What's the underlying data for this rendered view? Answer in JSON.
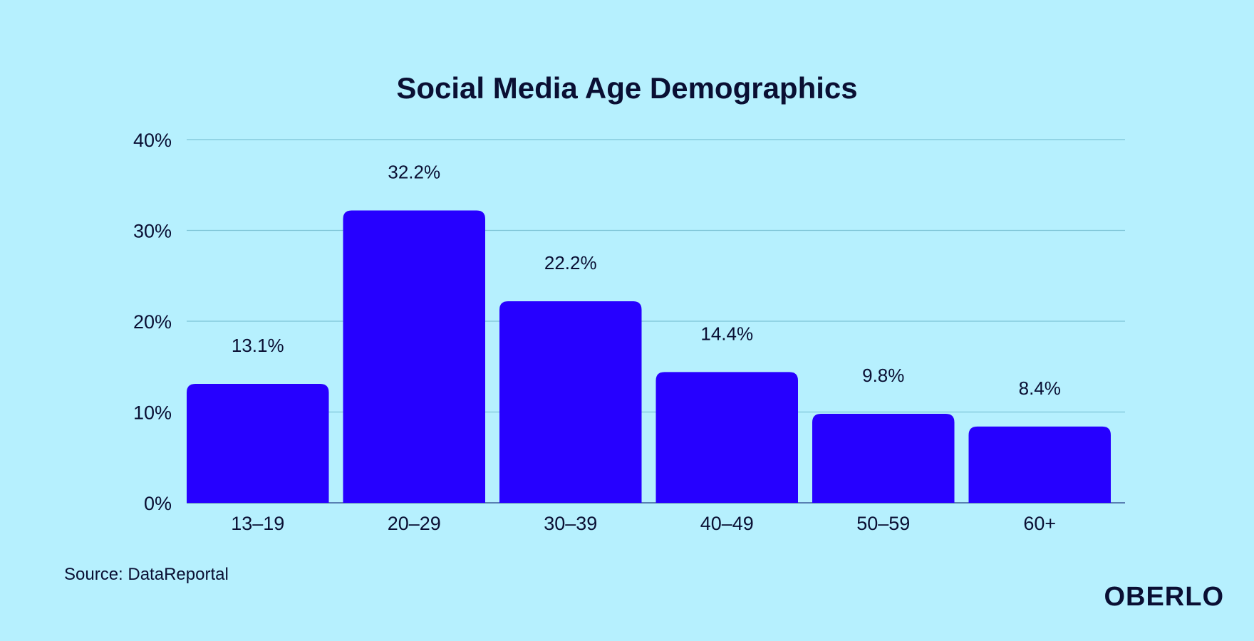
{
  "colors": {
    "background": "#b6f0fe",
    "bar": "#2600ff",
    "text": "#0a0f33",
    "grid": "#7ec4d6"
  },
  "chart_data": {
    "type": "bar",
    "title": "Social Media Age Demographics",
    "xlabel": "",
    "ylabel": "",
    "categories": [
      "13–19",
      "20–29",
      "30–39",
      "40–49",
      "50–59",
      "60+"
    ],
    "values": [
      13.1,
      32.2,
      22.2,
      14.4,
      9.8,
      8.4
    ],
    "value_labels": [
      "13.1%",
      "32.2%",
      "22.2%",
      "14.4%",
      "9.8%",
      "8.4%"
    ],
    "ylim": [
      0,
      40
    ],
    "yticks": [
      0,
      10,
      20,
      30,
      40
    ],
    "ytick_labels": [
      "0%",
      "10%",
      "20%",
      "30%",
      "40%"
    ],
    "grid": true,
    "legend": "none"
  },
  "footer": {
    "source": "Source: DataReportal",
    "logo": "OBERLO"
  }
}
